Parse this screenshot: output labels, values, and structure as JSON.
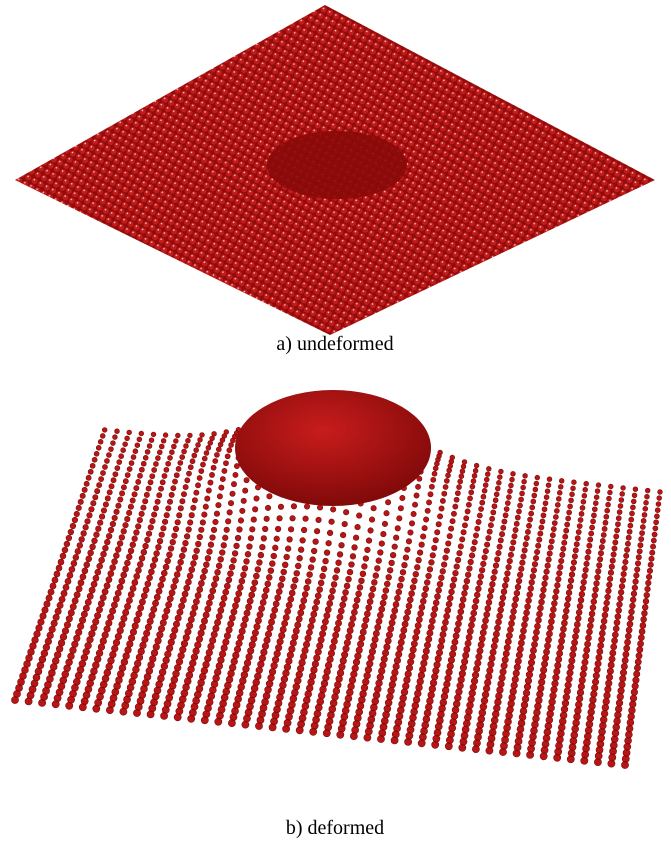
{
  "figure": {
    "panels": [
      {
        "caption": "a) undeformed"
      },
      {
        "caption": "b) deformed"
      }
    ]
  }
}
